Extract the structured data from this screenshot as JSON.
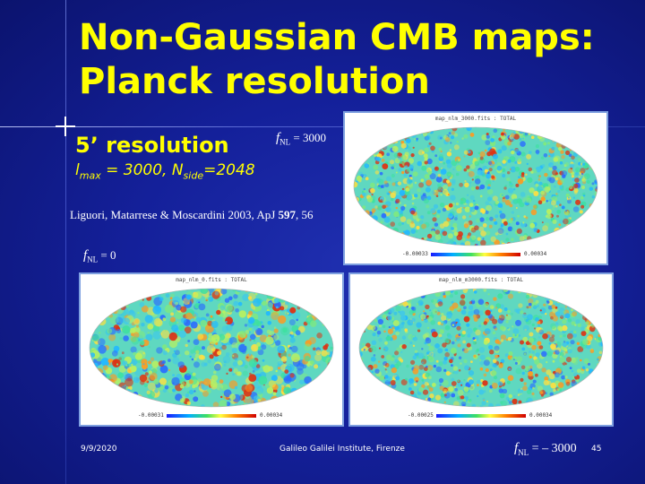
{
  "slide": {
    "title_line1": "Non-Gaussian CMB maps:",
    "title_line2": "Planck resolution",
    "subtitle": "5’ resolution",
    "lmax_l": "l",
    "lmax_sub": "max",
    "lmax_rest": " = 3000, N",
    "nside_sub": "side",
    "nside_rest": "=2048",
    "reference": "Liguori, Matarrese & Moscardini 2003, ApJ ",
    "reference_volume": "597",
    "reference_pages": ", 56"
  },
  "maps": [
    {
      "fnl_label_f": "f",
      "fnl_label_sub": "NL",
      "fnl_value": " = 3000",
      "panel_title": "map_nlm_3000.fits : TOTAL",
      "scale_min": "-0.00033",
      "scale_max": "0.00034"
    },
    {
      "fnl_label_f": "f",
      "fnl_label_sub": "NL",
      "fnl_value": " = 0",
      "panel_title": "map_nlm_0.fits : TOTAL",
      "scale_min": "-0.00031",
      "scale_max": "0.00034"
    },
    {
      "fnl_label_f": "f",
      "fnl_label_sub": "NL",
      "fnl_value": " = – 3000",
      "panel_title": "map_nlm_m3000.fits : TOTAL",
      "scale_min": "-0.00025",
      "scale_max": "0.00034"
    }
  ],
  "footer": {
    "date": "9/9/2020",
    "institute": "Galileo Galilei Institute, Firenze",
    "page": "45"
  }
}
